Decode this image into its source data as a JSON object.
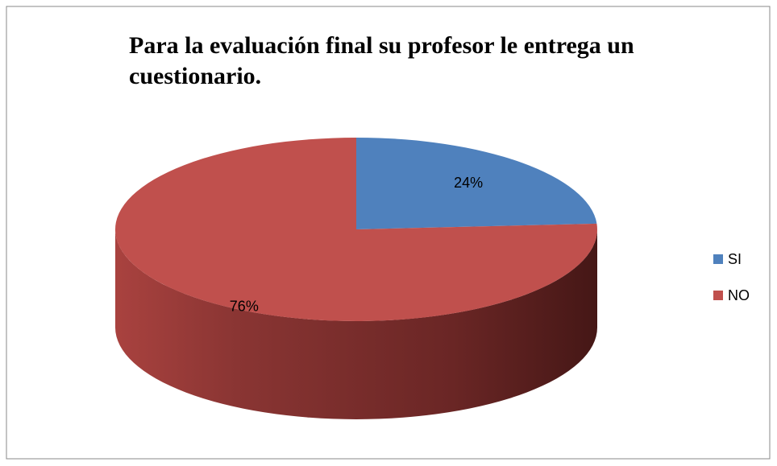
{
  "chart_data": {
    "type": "pie",
    "title": "Para la evaluación final su profesor le entrega un cuestionario.",
    "categories": [
      "SI",
      "NO"
    ],
    "values": [
      24,
      76
    ],
    "value_labels": [
      "24%",
      "76%"
    ],
    "colors": [
      "#4f81bd",
      "#c0504d"
    ],
    "legend": "right"
  }
}
